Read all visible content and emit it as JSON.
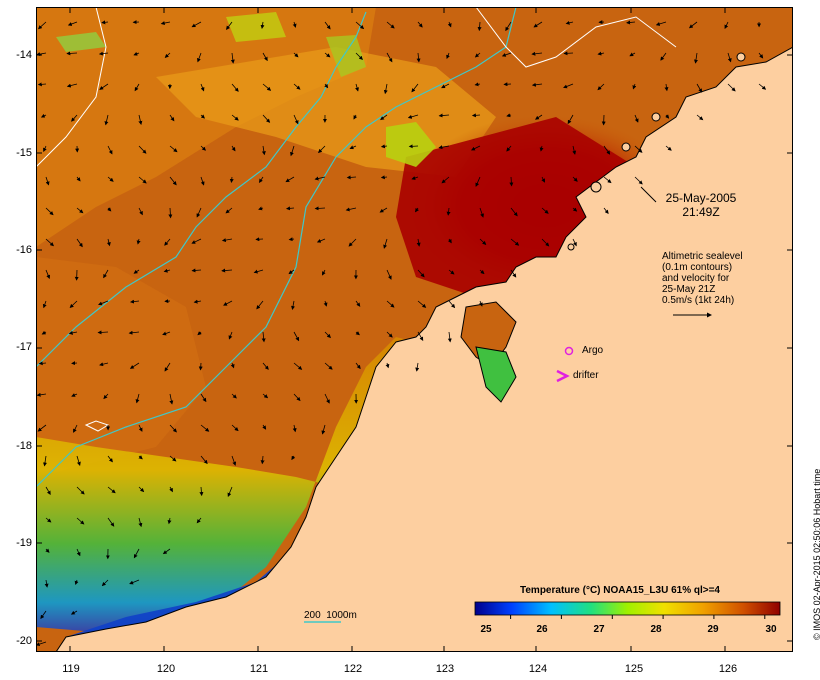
{
  "map": {
    "type": "sea-surface-temperature-map",
    "timestamp_date": "25-May-2005",
    "timestamp_time": "21:49Z",
    "sealevel_lines": [
      "Altimetric sealevel",
      "(0.1m contours)",
      "and velocity for",
      "25-May 21Z",
      "0.5m/s (1kt 24h)"
    ],
    "argo_label": "Argo",
    "drifter_label": "drifter",
    "depth_contours_label": "200  1000m",
    "credit": "© IMOS 02-Apr-2015 02:50:06 Hobart time",
    "lon_ticks": [
      "119",
      "120",
      "121",
      "122",
      "123",
      "124",
      "125",
      "126"
    ],
    "lat_ticks": [
      "-14",
      "-15",
      "-16",
      "-17",
      "-18",
      "-19",
      "-20"
    ],
    "colorbar": {
      "title": "Temperature (°C) NOAA15_L3U 61% ql>=4",
      "ticks": [
        "25",
        "26",
        "27",
        "28",
        "29",
        "30"
      ],
      "range": [
        24.3,
        30.3
      ]
    },
    "colors": {
      "land": "#fdcfa0",
      "ocean_warm": "#c85a08",
      "ocean_hot": "#a80000",
      "ocean_cool": "#e8a000",
      "contour": "#40c8c8",
      "marker": "#e020e0"
    }
  }
}
